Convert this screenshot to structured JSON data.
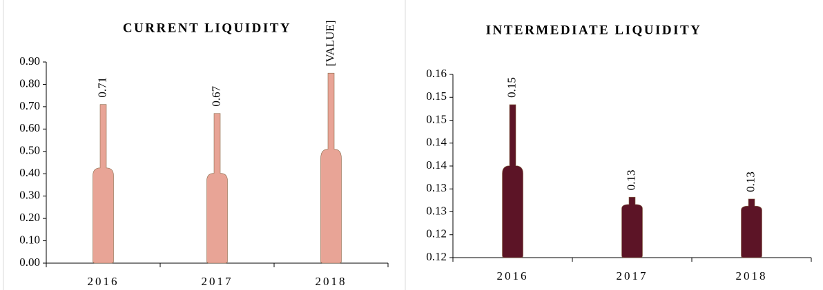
{
  "chart_data": [
    {
      "type": "bar",
      "title": "CURRENT LIQUIDITY",
      "categories": [
        "2016",
        "2017",
        "2018"
      ],
      "values": [
        0.71,
        0.67,
        0.85
      ],
      "value_labels": [
        "0.71",
        "0.67",
        "[VALUE]"
      ],
      "color": "#e8a496",
      "ylim": [
        0,
        0.9
      ],
      "yticks": [
        {
          "value": 0,
          "label": "0.00"
        },
        {
          "value": 0.1,
          "label": "0.10"
        },
        {
          "value": 0.2,
          "label": "0.20"
        },
        {
          "value": 0.3,
          "label": "0.30"
        },
        {
          "value": 0.4,
          "label": "0.40"
        },
        {
          "value": 0.5,
          "label": "0.50"
        },
        {
          "value": 0.6,
          "label": "0.60"
        },
        {
          "value": 0.7,
          "label": "0.70"
        },
        {
          "value": 0.8,
          "label": "0.80"
        },
        {
          "value": 0.9,
          "label": "0.90"
        }
      ]
    },
    {
      "type": "bar",
      "title": "INTERMEDIATE LIQUIDITY",
      "categories": [
        "2016",
        "2017",
        "2018"
      ],
      "values": [
        0.1534,
        0.1332,
        0.1328
      ],
      "value_labels": [
        "0.15",
        "0.13",
        "0.13"
      ],
      "color": "#5c1426",
      "ylim": [
        0.12,
        0.16
      ],
      "yticks": [
        {
          "value": 0.12,
          "label": "0.12"
        },
        {
          "value": 0.125,
          "label": "0.12"
        },
        {
          "value": 0.13,
          "label": "0.13"
        },
        {
          "value": 0.135,
          "label": "0.13"
        },
        {
          "value": 0.14,
          "label": "0.14"
        },
        {
          "value": 0.145,
          "label": "0.14"
        },
        {
          "value": 0.15,
          "label": "0.15"
        },
        {
          "value": 0.155,
          "label": "0.15"
        },
        {
          "value": 0.16,
          "label": "0.16"
        }
      ]
    }
  ]
}
